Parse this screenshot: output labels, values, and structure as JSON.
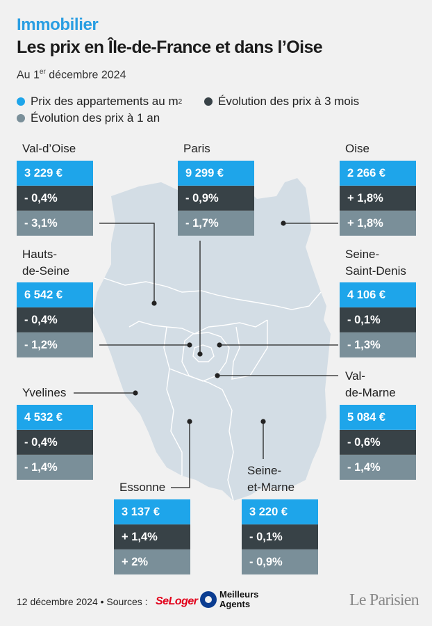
{
  "header": {
    "kicker": "Immobilier",
    "title": "Les prix en Île-de-France et dans l’Oise",
    "date_prefix": "Au 1",
    "date_sup": "er",
    "date_suffix": " décembre 2024"
  },
  "legend": {
    "price": {
      "label": "Prix des appartements au m",
      "sup": "2",
      "color": "#1ea5ea"
    },
    "three_months": {
      "label": "Évolution des prix à 3 mois",
      "color": "#384247"
    },
    "one_year": {
      "label": "Évolution des prix à 1 an",
      "color": "#7a8f99"
    }
  },
  "regions": {
    "val_doise": {
      "name": "Val-d’Oise",
      "price": "3 229 €",
      "m3": "- 0,4%",
      "y1": "- 3,1%"
    },
    "paris": {
      "name": "Paris",
      "price": "9 299 €",
      "m3": "- 0,9%",
      "y1": "- 1,7%"
    },
    "oise": {
      "name": "Oise",
      "price": "2 266 €",
      "m3": "+ 1,8%",
      "y1": "+ 1,8%"
    },
    "hauts_de_seine": {
      "name_line1": "Hauts-",
      "name_line2": "de-Seine",
      "price": "6 542 €",
      "m3": "- 0,4%",
      "y1": "- 1,2%"
    },
    "seine_saint_denis": {
      "name_line1": "Seine-",
      "name_line2": "Saint-Denis",
      "price": "4 106 €",
      "m3": "- 0,1%",
      "y1": "- 1,3%"
    },
    "yvelines": {
      "name": "Yvelines",
      "price": "4 532 €",
      "m3": "- 0,4%",
      "y1": "- 1,4%"
    },
    "val_de_marne": {
      "name_line1": "Val-",
      "name_line2": "de-Marne",
      "price": "5 084 €",
      "m3": "- 0,6%",
      "y1": "- 1,4%"
    },
    "essonne": {
      "name": "Essonne",
      "price": "3 137 €",
      "m3": "+ 1,4%",
      "y1": "+ 2%"
    },
    "seine_et_marne": {
      "name_line1": "Seine-",
      "name_line2": "et-Marne",
      "price": "3 220 €",
      "m3": "- 0,1%",
      "y1": "- 0,9%"
    }
  },
  "footer": {
    "text": "12 décembre 2024 • Sources :",
    "source1": "SeLoger",
    "source2_line1": "Meilleurs",
    "source2_line2": "Agents",
    "brand": "Le Parisien"
  },
  "colors": {
    "map_fill": "#d3dde5",
    "map_border": "#ffffff",
    "leader_line": "#222222"
  }
}
